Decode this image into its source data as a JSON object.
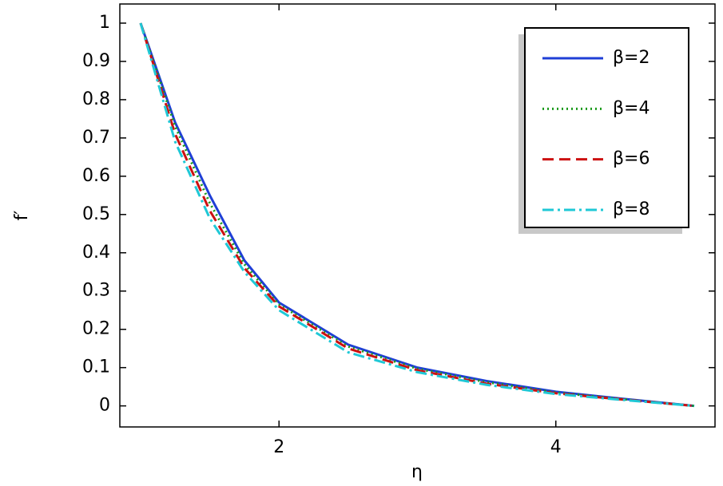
{
  "chart_data": {
    "type": "line",
    "x_label": "η",
    "y_label": "f′",
    "x": [
      1,
      1.25,
      1.5,
      1.75,
      2,
      2.5,
      3,
      3.5,
      4,
      4.5,
      5
    ],
    "series": [
      {
        "name": "β=2",
        "color": "#1f3fd6",
        "style": "solid",
        "values": [
          1,
          0.74,
          0.55,
          0.38,
          0.27,
          0.16,
          0.1,
          0.065,
          0.037,
          0.018,
          0
        ]
      },
      {
        "name": "β=4",
        "color": "#1a9a1a",
        "style": "dotted",
        "values": [
          1,
          0.73,
          0.53,
          0.37,
          0.265,
          0.155,
          0.097,
          0.062,
          0.035,
          0.017,
          0
        ]
      },
      {
        "name": "β=6",
        "color": "#cc1111",
        "style": "dashed",
        "values": [
          1,
          0.71,
          0.51,
          0.36,
          0.26,
          0.15,
          0.093,
          0.058,
          0.033,
          0.016,
          0
        ]
      },
      {
        "name": "β=8",
        "color": "#1fc8d6",
        "style": "dashdot",
        "values": [
          1,
          0.69,
          0.49,
          0.35,
          0.25,
          0.14,
          0.088,
          0.055,
          0.031,
          0.015,
          0
        ]
      }
    ],
    "xlim": [
      0.85,
      5.15
    ],
    "xticks": [
      2,
      4
    ],
    "ylim": [
      -0.055,
      1.05
    ],
    "yticks": [
      0,
      0.1,
      0.2,
      0.3,
      0.4,
      0.5,
      0.6,
      0.7,
      0.8,
      0.9,
      1
    ],
    "grid": false,
    "legend": "upper right"
  }
}
